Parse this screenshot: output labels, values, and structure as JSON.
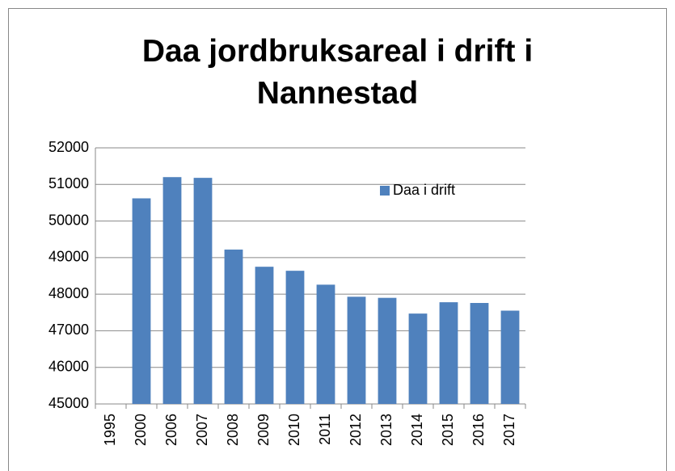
{
  "chart_data": {
    "type": "bar",
    "title": "Daa jordbruksareal i drift i Nannestad",
    "categories": [
      "1995",
      "2000",
      "2006",
      "2007",
      "2008",
      "2009",
      "2010",
      "2011",
      "2012",
      "2013",
      "2014",
      "2015",
      "2016",
      "2017"
    ],
    "series": [
      {
        "name": "Daa i drift",
        "color": "#4f81bd",
        "values": [
          null,
          50620,
          51200,
          51180,
          49220,
          48750,
          48640,
          48260,
          47930,
          47900,
          47470,
          47780,
          47760,
          47550
        ]
      }
    ],
    "ylim": [
      45000,
      52000
    ],
    "yticks": [
      45000,
      46000,
      47000,
      48000,
      49000,
      50000,
      51000,
      52000
    ],
    "grid": true,
    "legend": "upper right"
  }
}
